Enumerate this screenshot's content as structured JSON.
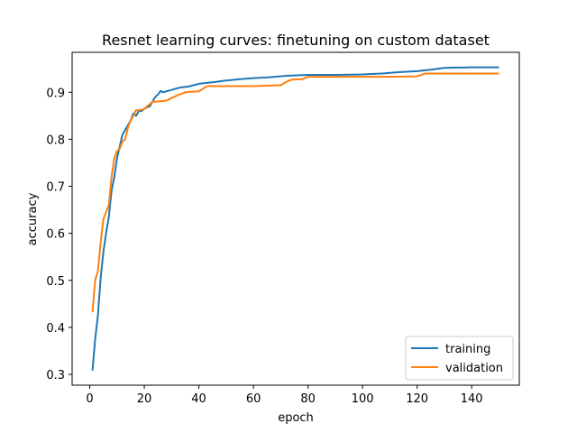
{
  "chart_data": {
    "type": "line",
    "title": "Resnet learning curves: finetuning on custom dataset",
    "xlabel": "epoch",
    "ylabel": "accuracy",
    "xlim": [
      -6.45,
      157.45
    ],
    "ylim": [
      0.277,
      0.985
    ],
    "xticks": [
      0,
      20,
      40,
      60,
      80,
      100,
      120,
      140
    ],
    "yticks": [
      0.3,
      0.4,
      0.5,
      0.6,
      0.7,
      0.8,
      0.9
    ],
    "xtick_labels": [
      "0",
      "20",
      "40",
      "60",
      "80",
      "100",
      "120",
      "140"
    ],
    "ytick_labels": [
      "0.3",
      "0.4",
      "0.5",
      "0.6",
      "0.7",
      "0.8",
      "0.9"
    ],
    "grid": false,
    "legend_position": "lower-right",
    "series": [
      {
        "name": "training",
        "color": "#1f77b4",
        "points": [
          [
            1,
            0.308
          ],
          [
            2,
            0.375
          ],
          [
            3,
            0.425
          ],
          [
            4,
            0.505
          ],
          [
            5,
            0.56
          ],
          [
            6,
            0.6
          ],
          [
            7,
            0.635
          ],
          [
            8,
            0.69
          ],
          [
            9,
            0.72
          ],
          [
            10,
            0.76
          ],
          [
            11,
            0.785
          ],
          [
            12,
            0.81
          ],
          [
            13,
            0.82
          ],
          [
            14,
            0.83
          ],
          [
            15,
            0.84
          ],
          [
            16,
            0.855
          ],
          [
            17,
            0.85
          ],
          [
            18,
            0.86
          ],
          [
            19,
            0.86
          ],
          [
            20,
            0.865
          ],
          [
            21,
            0.868
          ],
          [
            22,
            0.87
          ],
          [
            23,
            0.88
          ],
          [
            24,
            0.89
          ],
          [
            25,
            0.895
          ],
          [
            26,
            0.903
          ],
          [
            27,
            0.9
          ],
          [
            28,
            0.902
          ],
          [
            30,
            0.905
          ],
          [
            33,
            0.91
          ],
          [
            36,
            0.912
          ],
          [
            38,
            0.915
          ],
          [
            40,
            0.918
          ],
          [
            43,
            0.92
          ],
          [
            46,
            0.922
          ],
          [
            50,
            0.925
          ],
          [
            55,
            0.928
          ],
          [
            60,
            0.93
          ],
          [
            66,
            0.932
          ],
          [
            72,
            0.935
          ],
          [
            80,
            0.937
          ],
          [
            90,
            0.937
          ],
          [
            100,
            0.938
          ],
          [
            107,
            0.94
          ],
          [
            114,
            0.943
          ],
          [
            120,
            0.945
          ],
          [
            125,
            0.948
          ],
          [
            130,
            0.952
          ],
          [
            140,
            0.953
          ],
          [
            150,
            0.953
          ]
        ]
      },
      {
        "name": "validation",
        "color": "#ff7f0e",
        "points": [
          [
            1,
            0.432
          ],
          [
            2,
            0.5
          ],
          [
            3,
            0.52
          ],
          [
            4,
            0.58
          ],
          [
            5,
            0.63
          ],
          [
            6,
            0.645
          ],
          [
            7,
            0.66
          ],
          [
            8,
            0.72
          ],
          [
            9,
            0.76
          ],
          [
            10,
            0.775
          ],
          [
            11,
            0.78
          ],
          [
            12,
            0.795
          ],
          [
            13,
            0.8
          ],
          [
            14,
            0.825
          ],
          [
            15,
            0.84
          ],
          [
            16,
            0.85
          ],
          [
            17,
            0.862
          ],
          [
            18,
            0.862
          ],
          [
            19,
            0.863
          ],
          [
            20,
            0.864
          ],
          [
            21,
            0.87
          ],
          [
            22,
            0.875
          ],
          [
            23,
            0.88
          ],
          [
            24,
            0.88
          ],
          [
            28,
            0.882
          ],
          [
            30,
            0.888
          ],
          [
            32,
            0.893
          ],
          [
            35,
            0.9
          ],
          [
            40,
            0.902
          ],
          [
            43,
            0.913
          ],
          [
            50,
            0.913
          ],
          [
            60,
            0.913
          ],
          [
            70,
            0.915
          ],
          [
            72,
            0.922
          ],
          [
            74,
            0.927
          ],
          [
            78,
            0.928
          ],
          [
            80,
            0.933
          ],
          [
            90,
            0.933
          ],
          [
            100,
            0.933
          ],
          [
            110,
            0.933
          ],
          [
            120,
            0.934
          ],
          [
            123,
            0.94
          ],
          [
            130,
            0.94
          ],
          [
            140,
            0.94
          ],
          [
            150,
            0.94
          ]
        ]
      }
    ]
  }
}
